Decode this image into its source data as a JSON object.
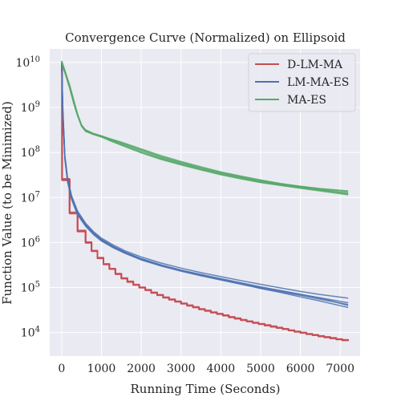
{
  "chart_data": {
    "type": "line",
    "title": "Convergence Curve (Normalized) on Ellipsoid",
    "xlabel": "Running Time (Seconds)",
    "ylabel": "Function Value (to be Minimized)",
    "xlim": [
      -300,
      7500
    ],
    "ylim": [
      3000,
      20000000000
    ],
    "yscale": "log",
    "grid": true,
    "legend_position": "top-right",
    "x_ticks": [
      0,
      1000,
      2000,
      3000,
      4000,
      5000,
      6000,
      7000
    ],
    "y_ticks": [
      {
        "value": 10000,
        "mant": "10",
        "exp": "4"
      },
      {
        "value": 100000,
        "mant": "10",
        "exp": "5"
      },
      {
        "value": 1000000,
        "mant": "10",
        "exp": "6"
      },
      {
        "value": 10000000,
        "mant": "10",
        "exp": "7"
      },
      {
        "value": 100000000,
        "mant": "10",
        "exp": "8"
      },
      {
        "value": 1000000000,
        "mant": "10",
        "exp": "9"
      },
      {
        "value": 10000000000,
        "mant": "10",
        "exp": "10"
      }
    ],
    "series": [
      {
        "name": "D-LM-MA",
        "color": "#c44e52",
        "style": "step",
        "runs": [
          {
            "x": [
              0,
              10,
              200,
              400,
              600,
              750,
              900,
              1050,
              1200,
              1350,
              1500,
              1650,
              1800,
              1950,
              2100,
              2250,
              2400,
              2550,
              2700,
              2850,
              3000,
              3150,
              3300,
              3450,
              3600,
              3750,
              3900,
              4050,
              4200,
              4350,
              4500,
              4650,
              4800,
              4950,
              5100,
              5250,
              5400,
              5550,
              5700,
              5850,
              6000,
              6150,
              6300,
              6450,
              6600,
              6750,
              6900,
              7050,
              7200
            ],
            "y": [
              8000000000,
              25000000,
              4500000,
              1800000,
              1000000,
              650000,
              450000,
              330000,
              260000,
              200000,
              160000,
              135000,
              115000,
              100000,
              88000,
              77000,
              68000,
              60000,
              54000,
              49000,
              44000,
              40000,
              36500,
              33000,
              30500,
              28000,
              26000,
              24000,
              22000,
              20500,
              19000,
              17700,
              16500,
              15500,
              14500,
              13600,
              12700,
              12000,
              11200,
              10500,
              9900,
              9300,
              8800,
              8300,
              7900,
              7500,
              7100,
              6800,
              6600
            ]
          },
          {
            "x": [
              0,
              10,
              200,
              400,
              600,
              750,
              900,
              1050,
              1200,
              1350,
              1500,
              1650,
              1800,
              1950,
              2100,
              2250,
              2400,
              2550,
              2700,
              2850,
              3000,
              3150,
              3300,
              3450,
              3600,
              3750,
              3900,
              4050,
              4200,
              4350,
              4500,
              4650,
              4800,
              4950,
              5100,
              5250,
              5400,
              5550,
              5700,
              5850,
              6000,
              6150,
              6300,
              6450,
              6600,
              6750,
              6900,
              7050,
              7200
            ],
            "y": [
              9000000000,
              26000000,
              4700000,
              1850000,
              1020000,
              660000,
              460000,
              335000,
              262000,
              203000,
              162000,
              137000,
              116000,
              101000,
              89000,
              78000,
              69000,
              61000,
              55000,
              49500,
              44500,
              40500,
              37000,
              33500,
              31000,
              28400,
              26300,
              24300,
              22300,
              20800,
              19200,
              17900,
              16700,
              15700,
              14700,
              13800,
              12900,
              12100,
              11300,
              10600,
              10000,
              9400,
              8900,
              8400,
              8000,
              7600,
              7200,
              6900,
              6700
            ]
          },
          {
            "x": [
              0,
              10,
              200,
              400,
              600,
              750,
              900,
              1050,
              1200,
              1350,
              1500,
              1650,
              1800,
              1950,
              2100,
              2250,
              2400,
              2550,
              2700,
              2850,
              3000,
              3150,
              3300,
              3450,
              3600,
              3750,
              3900,
              4050,
              4200,
              4350,
              4500,
              4650,
              4800,
              4950,
              5100,
              5250,
              5400,
              5550,
              5700,
              5850,
              6000,
              6150,
              6300,
              6450,
              6600,
              6750,
              6900,
              7050,
              7200
            ],
            "y": [
              7000000000,
              24000000,
              4400000,
              1750000,
              980000,
              640000,
              445000,
              325000,
              257000,
              198000,
              158000,
              133000,
              114000,
              99000,
              87000,
              76000,
              67500,
              59500,
              53500,
              48500,
              43500,
              39500,
              36000,
              32700,
              30200,
              27700,
              25700,
              23700,
              21800,
              20300,
              18800,
              17500,
              16300,
              15300,
              14300,
              13400,
              12600,
              11900,
              11100,
              10400,
              9800,
              9200,
              8700,
              8200,
              7800,
              7400,
              7000,
              6700,
              6500
            ]
          }
        ]
      },
      {
        "name": "LM-MA-ES",
        "color": "#4c72b0",
        "style": "line",
        "runs": [
          {
            "x": [
              0,
              30,
              80,
              150,
              250,
              400,
              600,
              800,
              1000,
              1300,
              1600,
              2000,
              2500,
              3000,
              3500,
              4000,
              4500,
              5000,
              5500,
              6000,
              6500,
              7200
            ],
            "y": [
              10000000000,
              800000000,
              80000000,
              25000000,
              10000000,
              4500000,
              2500000,
              1600000,
              1150000,
              800000,
              600000,
              430000,
              310000,
              240000,
              190000,
              150000,
              120000,
              95000,
              78000,
              62000,
              50000,
              36000
            ]
          },
          {
            "x": [
              0,
              30,
              80,
              150,
              250,
              400,
              600,
              800,
              1000,
              1300,
              1600,
              2000,
              2500,
              3000,
              3500,
              4000,
              4500,
              5000,
              5500,
              6000,
              6500,
              7200
            ],
            "y": [
              9500000000,
              700000000,
              75000000,
              23000000,
              9500000,
              4300000,
              2400000,
              1550000,
              1100000,
              780000,
              580000,
              420000,
              305000,
              235000,
              188000,
              152000,
              124000,
              100000,
              84000,
              70000,
              59000,
              46000
            ]
          },
          {
            "x": [
              0,
              30,
              80,
              150,
              250,
              400,
              600,
              800,
              1000,
              1300,
              1600,
              2000,
              2500,
              3000,
              3500,
              4000,
              4500,
              5000,
              5500,
              6000,
              6500,
              7200
            ],
            "y": [
              10000000000,
              900000000,
              85000000,
              27000000,
              11000000,
              5000000,
              2700000,
              1750000,
              1250000,
              880000,
              650000,
              480000,
              350000,
              270000,
              215000,
              175000,
              143000,
              118000,
              98000,
              82000,
              70000,
              58000
            ]
          },
          {
            "x": [
              0,
              30,
              80,
              150,
              250,
              400,
              600,
              800,
              1000,
              1300,
              1600,
              2000,
              2500,
              3000,
              3500,
              4000,
              4500,
              5000,
              5500,
              6000,
              6500,
              7200
            ],
            "y": [
              9000000000,
              650000000,
              70000000,
              22000000,
              9000000,
              4100000,
              2300000,
              1500000,
              1080000,
              760000,
              570000,
              410000,
              300000,
              230000,
              182000,
              147000,
              119000,
              97000,
              81000,
              67000,
              55000,
              42000
            ]
          },
          {
            "x": [
              0,
              30,
              80,
              150,
              250,
              400,
              600,
              800,
              1000,
              1300,
              1600,
              2000,
              2500,
              3000,
              3500,
              4000,
              4500,
              5000,
              5500,
              6000,
              6500,
              7200
            ],
            "y": [
              10000000000,
              750000000,
              78000000,
              24000000,
              9800000,
              4600000,
              2550000,
              1650000,
              1180000,
              820000,
              610000,
              440000,
              320000,
              245000,
              196000,
              158000,
              128000,
              104000,
              86000,
              71000,
              58000,
              40000
            ]
          }
        ]
      },
      {
        "name": "MA-ES",
        "color": "#55a868",
        "style": "line",
        "runs": [
          {
            "x": [
              0,
              100,
              200,
              300,
              400,
              500,
              600,
              800,
              1000,
              1200,
              1500,
              2000,
              2500,
              3000,
              3500,
              4000,
              4500,
              5000,
              5500,
              6000,
              6500,
              7200
            ],
            "y": [
              11000000000,
              6000000000,
              3000000000,
              1400000000,
              700000000,
              400000000,
              310000000,
              260000000,
              230000000,
              190000000,
              150000000,
              100000000,
              72000000,
              55000000,
              42000000,
              33000000,
              27000000,
              22000000,
              19000000,
              16500000,
              14500000,
              12500000
            ]
          },
          {
            "x": [
              0,
              100,
              200,
              300,
              400,
              500,
              600,
              800,
              1000,
              1200,
              1500,
              2000,
              2500,
              3000,
              3500,
              4000,
              4500,
              5000,
              5500,
              6000,
              6500,
              7200
            ],
            "y": [
              10500000000,
              5500000000,
              2800000000,
              1300000000,
              680000000,
              390000000,
              300000000,
              255000000,
              225000000,
              200000000,
              165000000,
              115000000,
              80000000,
              60000000,
              46000000,
              36000000,
              29000000,
              23500000,
              20000000,
              17500000,
              15500000,
              13500000
            ]
          },
          {
            "x": [
              0,
              100,
              200,
              300,
              400,
              500,
              600,
              800,
              1000,
              1200,
              1500,
              2000,
              2500,
              3000,
              3500,
              4000,
              4500,
              5000,
              5500,
              6000,
              6500,
              7200
            ],
            "y": [
              10000000000,
              5800000000,
              3200000000,
              1500000000,
              720000000,
              410000000,
              320000000,
              265000000,
              235000000,
              205000000,
              170000000,
              120000000,
              85000000,
              63000000,
              48000000,
              37000000,
              30000000,
              24500000,
              20500000,
              17800000,
              15800000,
              14000000
            ]
          },
          {
            "x": [
              0,
              100,
              200,
              300,
              400,
              500,
              600,
              800,
              1000,
              1200,
              1500,
              2000,
              2500,
              3000,
              3500,
              4000,
              4500,
              5000,
              5500,
              6000,
              6500,
              7200
            ],
            "y": [
              9500000000,
              5200000000,
              2700000000,
              1250000000,
              650000000,
              380000000,
              295000000,
              250000000,
              220000000,
              185000000,
              145000000,
              98000000,
              70000000,
              53000000,
              41000000,
              32000000,
              26000000,
              21500000,
              18500000,
              16000000,
              14000000,
              11500000
            ]
          },
          {
            "x": [
              0,
              100,
              200,
              300,
              400,
              500,
              600,
              800,
              1000,
              1200,
              1500,
              2000,
              2500,
              3000,
              3500,
              4000,
              4500,
              5000,
              5500,
              6000,
              6500,
              7200
            ],
            "y": [
              10200000000,
              5600000000,
              2900000000,
              1350000000,
              690000000,
              395000000,
              305000000,
              258000000,
              228000000,
              195000000,
              158000000,
              108000000,
              76000000,
              57000000,
              44000000,
              34500000,
              28000000,
              23000000,
              19500000,
              17000000,
              15000000,
              12000000
            ]
          }
        ]
      }
    ]
  }
}
